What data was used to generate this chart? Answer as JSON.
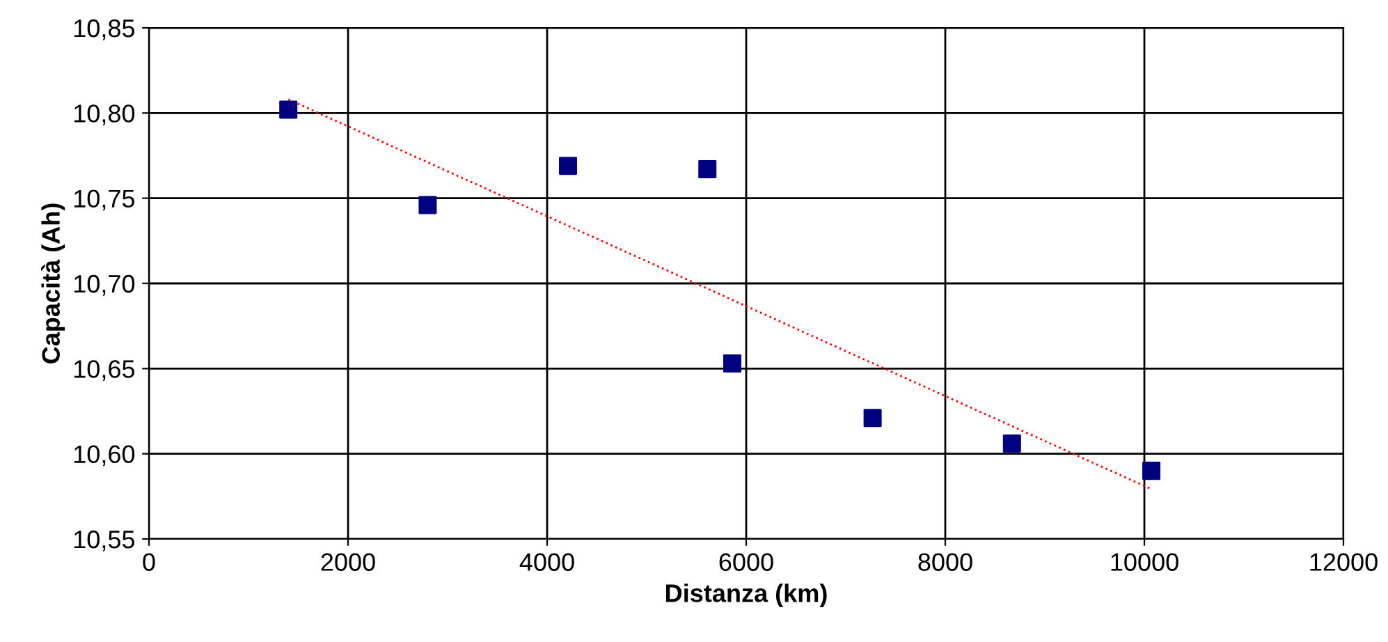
{
  "chart_data": {
    "type": "scatter",
    "xlabel": "Distanza (km)",
    "ylabel": "Capacità (Ah)",
    "series": [
      {
        "color": "#000080",
        "marker": "square",
        "x": [
          1400,
          2800,
          4210,
          5610,
          5860,
          7270,
          8670,
          10070
        ],
        "values": [
          10.802,
          10.746,
          10.769,
          10.767,
          10.653,
          10.621,
          10.606,
          10.59
        ]
      },
      {
        "type": "line",
        "color": "#ff0000",
        "line_style": "dotted",
        "marker": "none",
        "x": [
          1400,
          10080
        ],
        "values": [
          10.808,
          10.579
        ]
      }
    ],
    "xlim": [
      0,
      12000
    ],
    "xticks": [
      0,
      2000,
      4000,
      6000,
      8000,
      10000,
      12000
    ],
    "ylim": [
      10.55,
      10.85
    ],
    "yticks": [
      {
        "value": 10.55,
        "label": "10,55"
      },
      {
        "value": 10.6,
        "label": "10,60"
      },
      {
        "value": 10.65,
        "label": "10,65"
      },
      {
        "value": 10.7,
        "label": "10,70"
      },
      {
        "value": 10.75,
        "label": "10,75"
      },
      {
        "value": 10.8,
        "label": "10,80"
      },
      {
        "value": 10.85,
        "label": "10,85"
      }
    ],
    "grid": true,
    "legend": false
  }
}
